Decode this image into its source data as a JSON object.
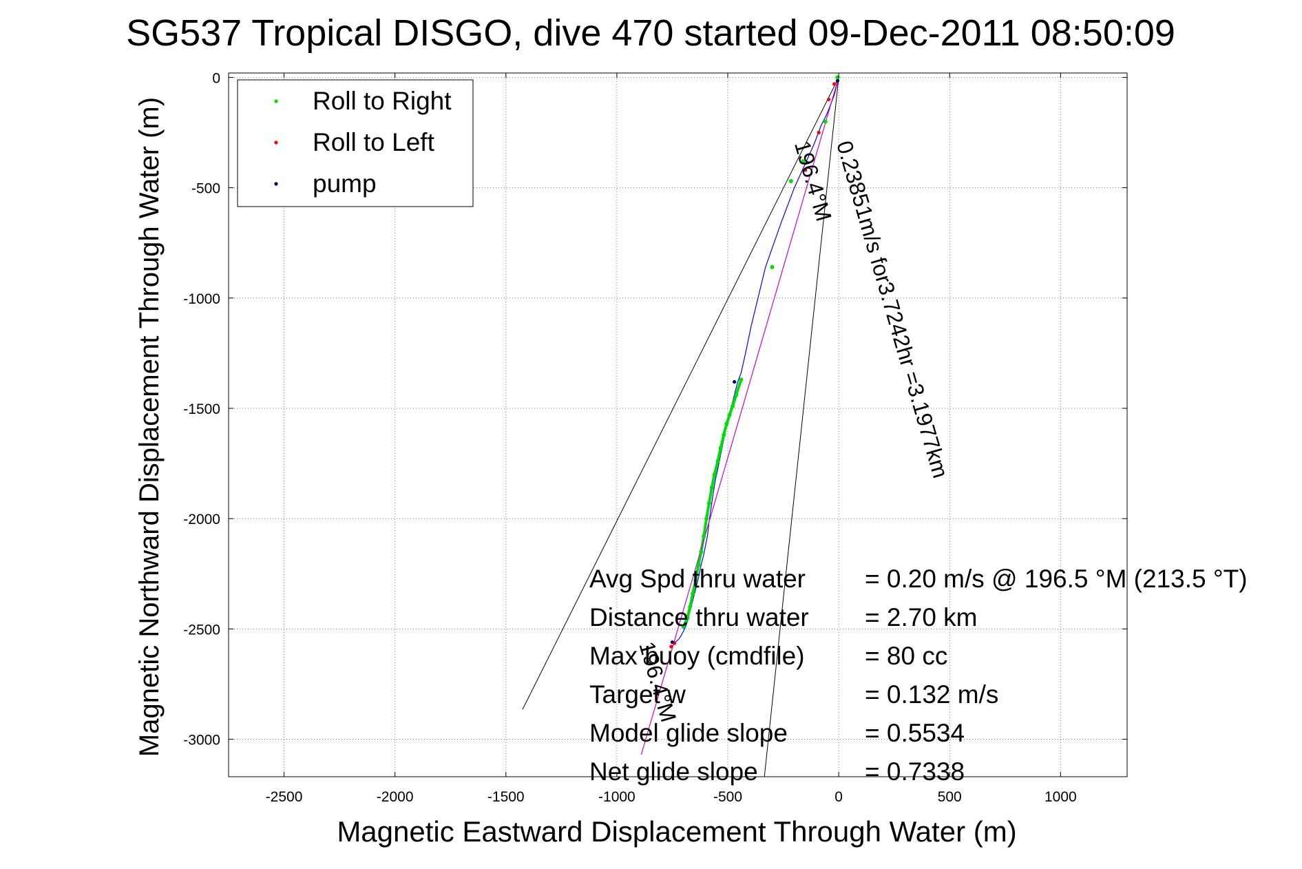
{
  "chart_data": {
    "type": "line",
    "title": "SG537 Tropical DISGO, dive 470 started 09-Dec-2011 08:50:09",
    "xlabel": "Magnetic Eastward Displacement Through Water (m)",
    "ylabel": "Magnetic Northward Displacement Through Water (m)",
    "xlim": [
      -2750,
      1300
    ],
    "ylim": [
      -3170,
      20
    ],
    "xticks": [
      -2500,
      -2000,
      -1500,
      -1000,
      -500,
      0,
      500,
      1000
    ],
    "yticks": [
      0,
      -500,
      -1000,
      -1500,
      -2000,
      -2500,
      -3000
    ],
    "grid": true,
    "legend_position": "top-left",
    "legend": [
      {
        "label": "Roll to Right",
        "color": "#00dd00"
      },
      {
        "label": "Roll to Left",
        "color": "#ff0000"
      },
      {
        "label": "pump",
        "color": "#000080"
      }
    ],
    "series": [
      {
        "name": "track",
        "color": "#0000ff",
        "x": [
          0,
          -10,
          -20,
          -35,
          -55,
          -80,
          -110,
          -150,
          -200,
          -260,
          -330,
          -395,
          -420,
          -440,
          -455,
          -468,
          -480,
          -490,
          -500,
          -510,
          -520,
          -530,
          -542,
          -555,
          -565,
          -575,
          -585,
          -592,
          -600,
          -610,
          -620,
          -630,
          -640,
          -650,
          -660,
          -670,
          -680,
          -690,
          -700,
          -710,
          -720,
          -730,
          -740,
          -750
        ],
        "y": [
          0,
          -40,
          -80,
          -120,
          -170,
          -220,
          -300,
          -390,
          -500,
          -660,
          -860,
          -1130,
          -1250,
          -1340,
          -1380,
          -1430,
          -1480,
          -1520,
          -1560,
          -1600,
          -1650,
          -1700,
          -1760,
          -1820,
          -1880,
          -1950,
          -2020,
          -2080,
          -2120,
          -2170,
          -2210,
          -2260,
          -2300,
          -2340,
          -2380,
          -2420,
          -2460,
          -2490,
          -2510,
          -2530,
          -2545,
          -2555,
          -2560,
          -2565
        ]
      },
      {
        "name": "Roll to Right",
        "color": "#00dd00",
        "x": [
          -5,
          -60,
          -160,
          -215,
          -300,
          -440,
          -462,
          -478,
          -492,
          -505,
          -518,
          -532,
          -545,
          -560,
          -572,
          -584,
          -596,
          -608,
          -620,
          -632,
          -645,
          -658,
          -670,
          -682,
          -700
        ],
        "y": [
          0,
          -200,
          -380,
          -470,
          -860,
          -1370,
          -1440,
          -1490,
          -1530,
          -1570,
          -1620,
          -1680,
          -1740,
          -1800,
          -1860,
          -1930,
          -2000,
          -2080,
          -2150,
          -2210,
          -2280,
          -2340,
          -2400,
          -2450,
          -2490
        ]
      },
      {
        "name": "Roll to Left",
        "color": "#ff0000",
        "x": [
          -20,
          -45,
          -90,
          -150,
          -740,
          -755
        ],
        "y": [
          -30,
          -100,
          -250,
          -420,
          -2565,
          -2580
        ]
      },
      {
        "name": "pump",
        "color": "#000080",
        "x": [
          -5,
          -470,
          -750
        ],
        "y": [
          -15,
          -1380,
          -2560
        ]
      },
      {
        "name": "net",
        "color": "#cc00cc",
        "x": [
          0,
          -890
        ],
        "y": [
          0,
          -3070
        ]
      }
    ],
    "cone_lines": [
      {
        "x": [
          0,
          -1425
        ],
        "y": [
          0,
          -2865
        ]
      },
      {
        "x": [
          0,
          -335
        ],
        "y": [
          0,
          -3170
        ]
      }
    ],
    "annotations": [
      {
        "text": "0.23851m/s for3.7242hr =3.1977km",
        "x": -10,
        "y": -300,
        "angle": -73.8
      },
      {
        "text": "196.4°M",
        "x": -200,
        "y": -300,
        "angle": -73.8
      },
      {
        "text": "196.4°M",
        "x": -900,
        "y": -2570,
        "angle": -73.8
      }
    ],
    "info": [
      {
        "label": "Avg Spd thru water",
        "value": "=  0.20 m/s @ 196.5 °M (213.5 °T)"
      },
      {
        "label": "Distance thru water",
        "value": "=  2.70 km"
      },
      {
        "label": "Max buoy (cmdfile)",
        "value": "= 80 cc"
      },
      {
        "label": "Target w",
        "value": "= 0.132 m/s"
      },
      {
        "label": "Model glide slope",
        "value": "= 0.5534"
      },
      {
        "label": "Net glide slope",
        "value": "= 0.7338"
      }
    ]
  }
}
